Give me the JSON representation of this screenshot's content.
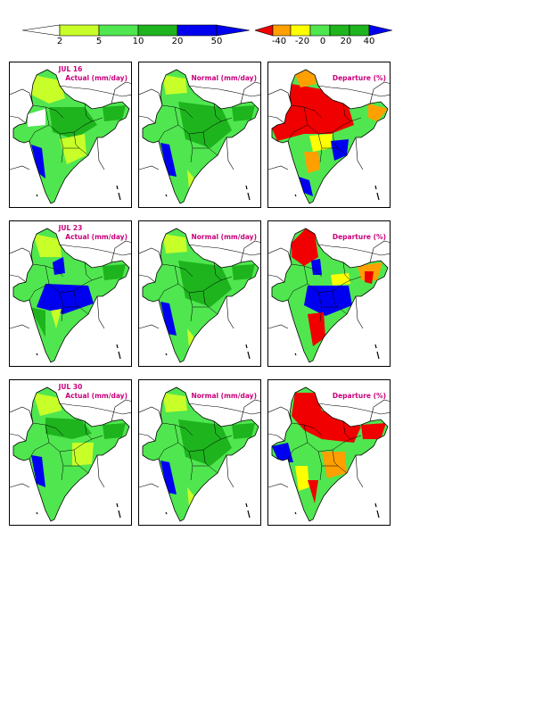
{
  "colorbars": {
    "rainfall": {
      "ticks": [
        "2",
        "5",
        "10",
        "20",
        "50"
      ],
      "colors": [
        "#ffffff",
        "#c8ff28",
        "#50e650",
        "#1eb41e",
        "#0000f0"
      ]
    },
    "departure": {
      "ticks": [
        "-40",
        "-20",
        "0",
        "20",
        "40"
      ],
      "colors": [
        "#f00000",
        "#ffa000",
        "#ffff00",
        "#50e650",
        "#1eb41e",
        "#0000f0"
      ]
    }
  },
  "rows": [
    {
      "date": "JUL 16",
      "actual_title": "Actual (mm/day)",
      "normal_title": "Normal (mm/day)",
      "departure_title": "Departure (%)"
    },
    {
      "date": "JUL 23",
      "actual_title": "Actual (mm/day)",
      "normal_title": "Normal (mm/day)",
      "departure_title": "Departure (%)"
    },
    {
      "date": "JUL 30",
      "actual_title": "Actual (mm/day)",
      "normal_title": "Normal (mm/day)",
      "departure_title": "Departure (%)"
    }
  ]
}
